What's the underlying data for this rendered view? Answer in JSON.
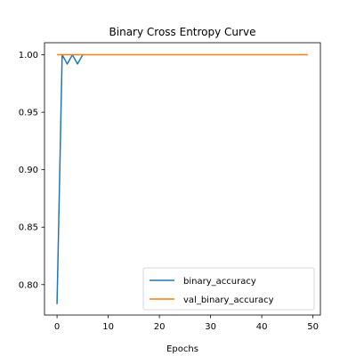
{
  "chart_data": {
    "type": "line",
    "title": "Binary Cross Entropy Curve",
    "xlabel": "Epochs",
    "ylabel": "",
    "xlim": [
      -2.45,
      51.45
    ],
    "ylim": [
      0.7735,
      1.0105
    ],
    "xticks": [
      0,
      10,
      20,
      30,
      40,
      50
    ],
    "xtick_labels": [
      "0",
      "10",
      "20",
      "30",
      "40",
      "50"
    ],
    "yticks": [
      0.8,
      0.85,
      0.9,
      0.95,
      1.0
    ],
    "ytick_labels": [
      "0.80",
      "0.85",
      "0.90",
      "0.95",
      "1.00"
    ],
    "grid": false,
    "legend_position": "lower-right",
    "series": [
      {
        "name": "binary_accuracy",
        "color": "#1f77b4",
        "x": [
          0,
          1,
          2,
          3,
          4,
          5
        ],
        "y": [
          0.783,
          1.0,
          0.992,
          1.0,
          0.992,
          1.0
        ]
      },
      {
        "name": "val_binary_accuracy",
        "color": "#ff7f0e",
        "x": [
          0,
          1,
          2,
          3,
          4,
          5,
          6,
          7,
          8,
          9,
          10,
          11,
          12,
          13,
          14,
          15,
          16,
          17,
          18,
          19,
          20,
          21,
          22,
          23,
          24,
          25,
          26,
          27,
          28,
          29,
          30,
          31,
          32,
          33,
          34,
          35,
          36,
          37,
          38,
          39,
          40,
          41,
          42,
          43,
          44,
          45,
          46,
          47,
          48,
          49
        ],
        "y": [
          1.0,
          1.0,
          1.0,
          1.0,
          1.0,
          1.0,
          1.0,
          1.0,
          1.0,
          1.0,
          1.0,
          1.0,
          1.0,
          1.0,
          1.0,
          1.0,
          1.0,
          1.0,
          1.0,
          1.0,
          1.0,
          1.0,
          1.0,
          1.0,
          1.0,
          1.0,
          1.0,
          1.0,
          1.0,
          1.0,
          1.0,
          1.0,
          1.0,
          1.0,
          1.0,
          1.0,
          1.0,
          1.0,
          1.0,
          1.0,
          1.0,
          1.0,
          1.0,
          1.0,
          1.0,
          1.0,
          1.0,
          1.0,
          1.0,
          1.0
        ]
      }
    ]
  }
}
